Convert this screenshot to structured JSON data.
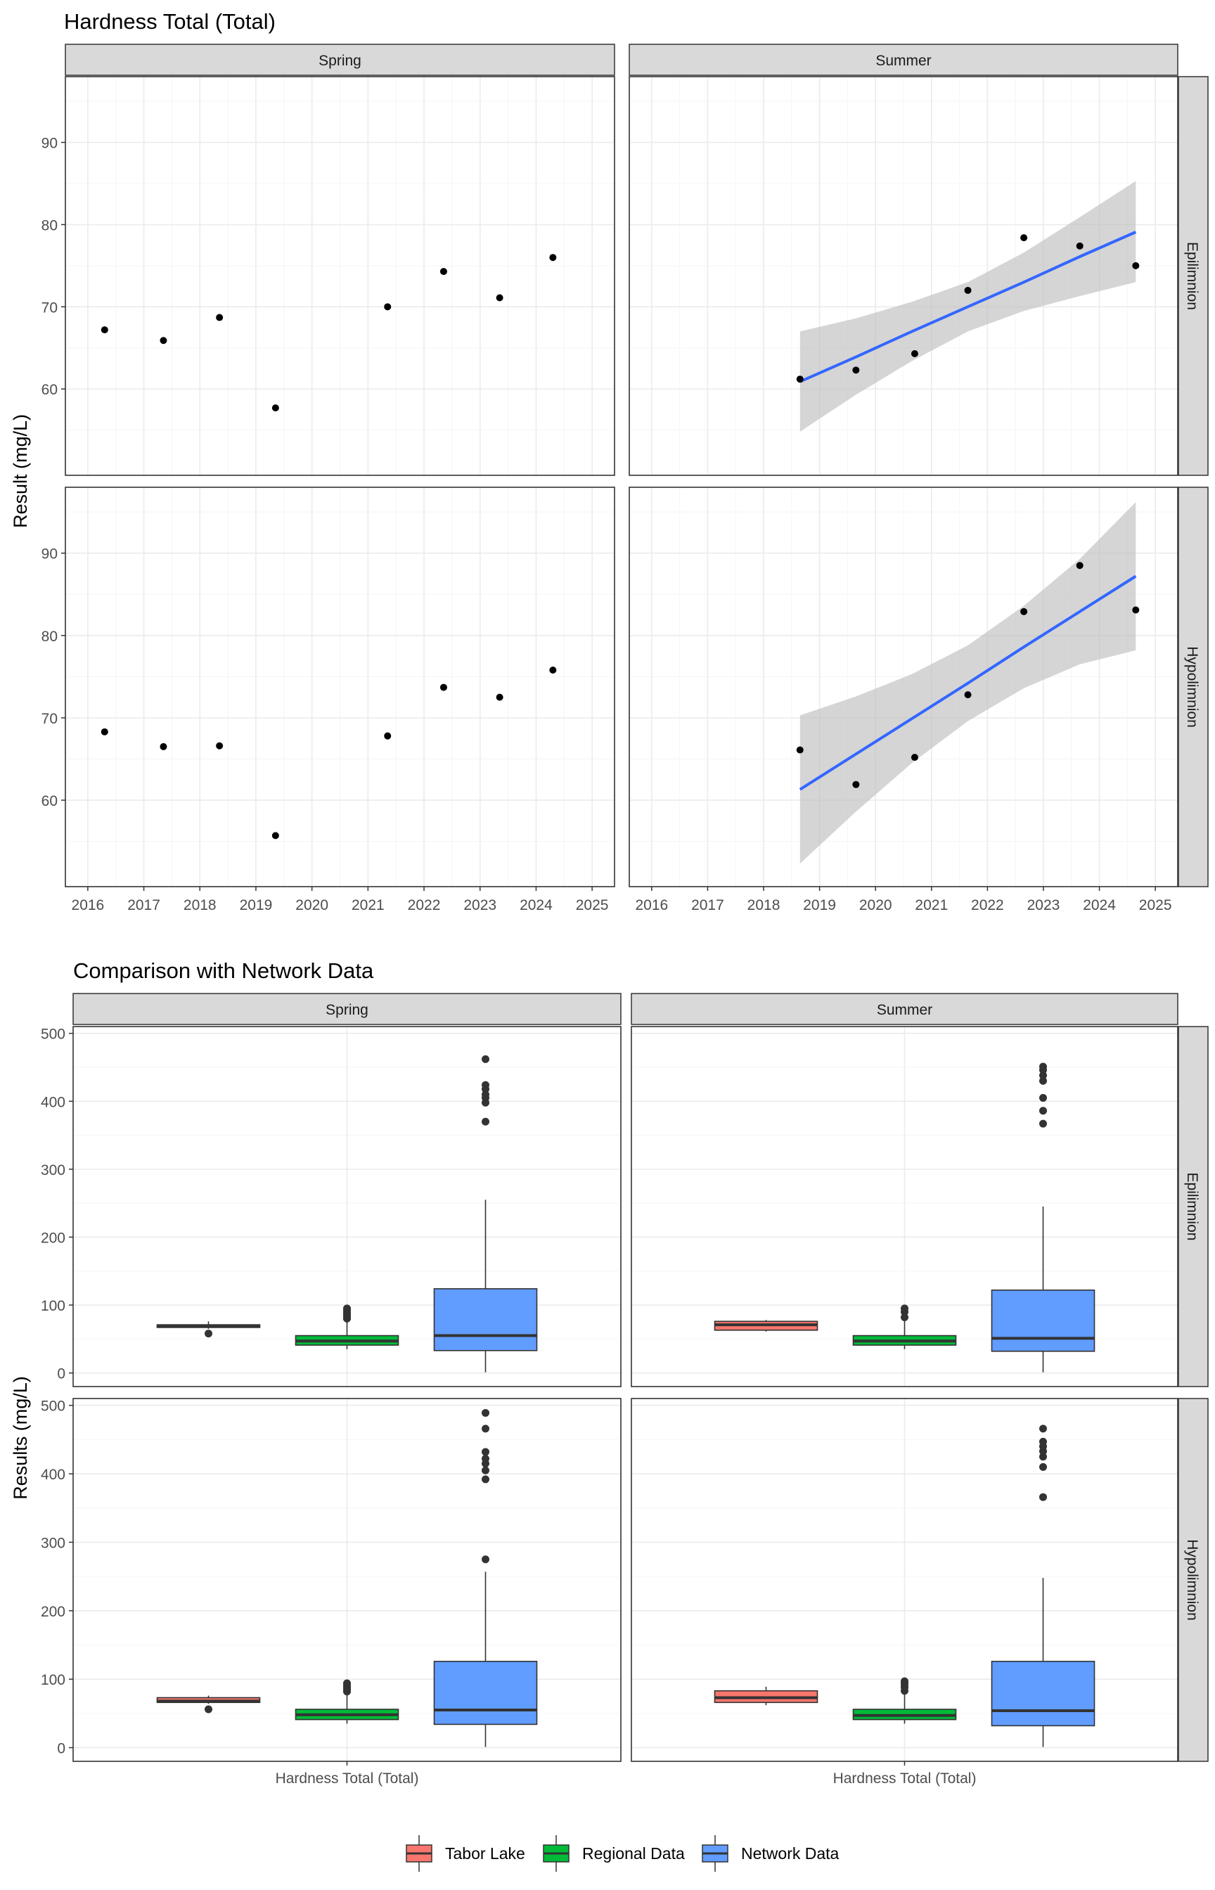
{
  "colors": {
    "strip_fill": "#d9d9d9",
    "panel_border": "#333333",
    "grid_major": "#ebebeb",
    "grid_minor": "#f5f5f5",
    "point": "#000000",
    "trend_line": "#3366ff",
    "ci_band": "#bebebe",
    "tabor_lake": "#f8766d",
    "regional_data": "#00ba38",
    "network_data": "#619cff"
  },
  "chart_data": [
    {
      "type": "scatter",
      "title": "Hardness Total (Total)",
      "xlabel": "",
      "ylabel": "Result (mg/L)",
      "col_facets": [
        "Spring",
        "Summer"
      ],
      "row_facets": [
        "Epilimnion",
        "Hypolimnion"
      ],
      "xlim": [
        2015.6,
        2025.4
      ],
      "ylim_rows": [
        [
          49.5,
          98
        ],
        [
          49.5,
          98
        ]
      ],
      "x_ticks": [
        2016,
        2017,
        2018,
        2019,
        2020,
        2021,
        2022,
        2023,
        2024,
        2025
      ],
      "y_ticks": [
        60,
        70,
        80,
        90
      ],
      "grid": true,
      "panels": [
        {
          "row": "Epilimnion",
          "col": "Spring",
          "points": [
            [
              2016.3,
              67.2
            ],
            [
              2017.35,
              65.9
            ],
            [
              2018.35,
              68.7
            ],
            [
              2019.35,
              57.7
            ],
            [
              2021.35,
              70.0
            ],
            [
              2022.35,
              74.3
            ],
            [
              2023.35,
              71.1
            ],
            [
              2024.3,
              76.0
            ]
          ]
        },
        {
          "row": "Epilimnion",
          "col": "Summer",
          "points": [
            [
              2018.65,
              61.2
            ],
            [
              2019.65,
              62.3
            ],
            [
              2020.7,
              64.3
            ],
            [
              2021.65,
              72.0
            ],
            [
              2022.65,
              78.4
            ],
            [
              2023.65,
              77.4
            ],
            [
              2024.65,
              75.0
            ]
          ],
          "trend": {
            "x": [
              2018.65,
              2019.65,
              2020.65,
              2021.65,
              2022.65,
              2023.65,
              2024.65
            ],
            "fit": [
              60.9,
              63.9,
              67.0,
              70.0,
              73.0,
              76.1,
              79.1
            ],
            "lower": [
              54.8,
              59.3,
              63.4,
              67.0,
              69.5,
              71.3,
              73.0
            ],
            "upper": [
              67.0,
              68.6,
              70.6,
              73.0,
              76.6,
              80.9,
              85.3
            ]
          }
        },
        {
          "row": "Hypolimnion",
          "col": "Spring",
          "points": [
            [
              2016.3,
              68.3
            ],
            [
              2017.35,
              66.5
            ],
            [
              2018.35,
              66.6
            ],
            [
              2019.35,
              55.7
            ],
            [
              2021.35,
              67.8
            ],
            [
              2022.35,
              73.7
            ],
            [
              2023.35,
              72.5
            ],
            [
              2024.3,
              75.8
            ]
          ]
        },
        {
          "row": "Hypolimnion",
          "col": "Summer",
          "points": [
            [
              2018.65,
              66.1
            ],
            [
              2019.65,
              61.9
            ],
            [
              2020.7,
              65.2
            ],
            [
              2021.65,
              72.8
            ],
            [
              2022.65,
              82.9
            ],
            [
              2023.65,
              88.5
            ],
            [
              2024.65,
              83.1
            ]
          ],
          "trend": {
            "x": [
              2018.65,
              2019.65,
              2020.65,
              2021.65,
              2022.65,
              2023.65,
              2024.65
            ],
            "fit": [
              61.3,
              65.6,
              69.9,
              74.2,
              78.6,
              82.9,
              87.2
            ],
            "lower": [
              52.3,
              58.6,
              64.5,
              69.6,
              73.6,
              76.5,
              78.2
            ],
            "upper": [
              70.3,
              72.6,
              75.3,
              78.8,
              83.6,
              89.3,
              96.2
            ]
          }
        }
      ]
    },
    {
      "type": "box",
      "title": "Comparison with Network Data",
      "xlabel": "",
      "ylabel": "Results (mg/L)",
      "col_facets": [
        "Spring",
        "Summer"
      ],
      "row_facets": [
        "Epilimnion",
        "Hypolimnion"
      ],
      "category": "Hardness Total (Total)",
      "ylim": [
        -20,
        510
      ],
      "y_ticks": [
        0,
        100,
        200,
        300,
        400,
        500
      ],
      "grid": true,
      "legend": {
        "position": "bottom",
        "entries": [
          "Tabor Lake",
          "Regional Data",
          "Network Data"
        ]
      },
      "panels": [
        {
          "row": "Epilimnion",
          "col": "Spring",
          "boxes": [
            {
              "group": "Tabor Lake",
              "q1": 67,
              "median": 69,
              "q3": 71,
              "whisker_low": 65,
              "whisker_high": 76,
              "outliers": [
                58
              ]
            },
            {
              "group": "Regional Data",
              "q1": 41,
              "median": 47,
              "q3": 55,
              "whisker_low": 35,
              "whisker_high": 76,
              "outliers": [
                80,
                83,
                86,
                89,
                92,
                95
              ]
            },
            {
              "group": "Network Data",
              "q1": 33,
              "median": 55,
              "q3": 124,
              "whisker_low": 1,
              "whisker_high": 255,
              "outliers": [
                370,
                398,
                405,
                410,
                418,
                424,
                462
              ]
            }
          ]
        },
        {
          "row": "Epilimnion",
          "col": "Summer",
          "boxes": [
            {
              "group": "Tabor Lake",
              "q1": 63,
              "median": 71,
              "q3": 76,
              "whisker_low": 61,
              "whisker_high": 78,
              "outliers": []
            },
            {
              "group": "Regional Data",
              "q1": 41,
              "median": 47,
              "q3": 55,
              "whisker_low": 35,
              "whisker_high": 77,
              "outliers": [
                82,
                90,
                95
              ]
            },
            {
              "group": "Network Data",
              "q1": 32,
              "median": 51,
              "q3": 122,
              "whisker_low": 1,
              "whisker_high": 245,
              "outliers": [
                367,
                386,
                405,
                430,
                438,
                446,
                451
              ]
            }
          ]
        },
        {
          "row": "Hypolimnion",
          "col": "Spring",
          "boxes": [
            {
              "group": "Tabor Lake",
              "q1": 66,
              "median": 68,
              "q3": 73,
              "whisker_low": 64,
              "whisker_high": 76,
              "outliers": [
                56
              ]
            },
            {
              "group": "Regional Data",
              "q1": 41,
              "median": 48,
              "q3": 56,
              "whisker_low": 35,
              "whisker_high": 78,
              "outliers": [
                82,
                85,
                88,
                91,
                94
              ]
            },
            {
              "group": "Network Data",
              "q1": 34,
              "median": 55,
              "q3": 126,
              "whisker_low": 1,
              "whisker_high": 257,
              "outliers": [
                275,
                392,
                405,
                415,
                422,
                432,
                466,
                489
              ]
            }
          ]
        },
        {
          "row": "Hypolimnion",
          "col": "Summer",
          "boxes": [
            {
              "group": "Tabor Lake",
              "q1": 66,
              "median": 73,
              "q3": 83,
              "whisker_low": 62,
              "whisker_high": 89,
              "outliers": []
            },
            {
              "group": "Regional Data",
              "q1": 41,
              "median": 47,
              "q3": 56,
              "whisker_low": 35,
              "whisker_high": 78,
              "outliers": [
                83,
                88,
                92,
                95,
                97
              ]
            },
            {
              "group": "Network Data",
              "q1": 32,
              "median": 54,
              "q3": 126,
              "whisker_low": 1,
              "whisker_high": 248,
              "outliers": [
                366,
                410,
                425,
                433,
                440,
                447,
                466
              ]
            }
          ]
        }
      ]
    }
  ]
}
